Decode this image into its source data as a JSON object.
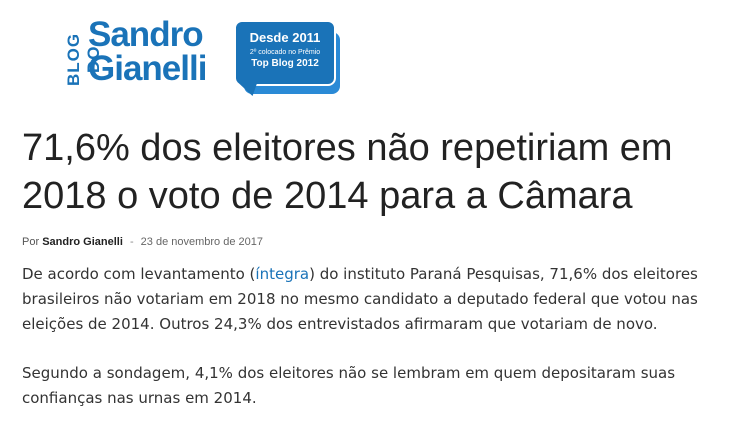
{
  "logo": {
    "blog_do": "BLOG DO",
    "name_line1": "Sandro",
    "name_line2": "Gianelli",
    "bubble_title": "Desde 2011",
    "bubble_line": "2º colocado no Prêmio",
    "bubble_sub": "Top Blog 2012",
    "colors": {
      "brand": "#1a73b8",
      "bubble_back": "#2a8ad6"
    }
  },
  "article": {
    "title": "71,6% dos eleitores não repetiriam em 2018 o voto de 2014 para a Câmara",
    "by_label": "Por",
    "author": "Sandro Gianelli",
    "separator": "-",
    "date": "23 de novembro de 2017",
    "p1_before": "De acordo com levantamento (",
    "p1_link": "íntegra",
    "p1_after": ") do instituto Paraná Pesquisas, 71,6% dos eleitores brasileiros não votariam em 2018 no mesmo candidato a deputado federal que votou nas eleições de 2014. Outros 24,3% dos entrevistados afirmaram que votariam de novo.",
    "p2": "Segundo a sondagem, 4,1% dos eleitores não se lembram em quem depositaram suas confianças nas urnas em 2014."
  }
}
